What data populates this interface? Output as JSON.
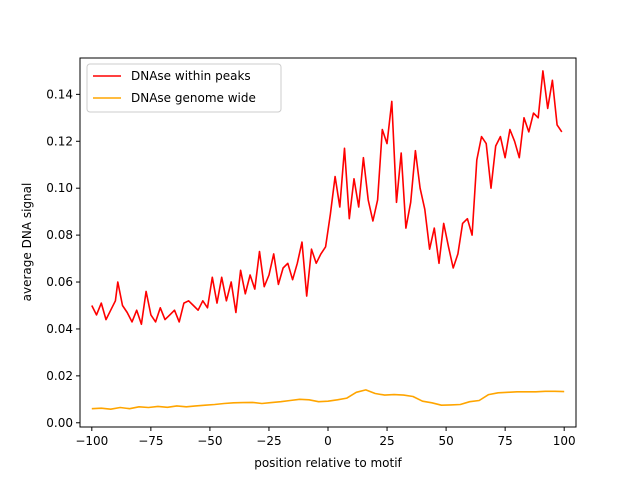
{
  "chart_data": {
    "type": "line",
    "xlabel": "position relative to motif",
    "ylabel": "average DNA signal",
    "xlim": [
      -105,
      105
    ],
    "ylim": [
      -0.0018,
      0.1555
    ],
    "xticks": [
      -100,
      -75,
      -50,
      -25,
      0,
      25,
      50,
      75,
      100
    ],
    "yticks": [
      0.0,
      0.02,
      0.04,
      0.06,
      0.08,
      0.1,
      0.12,
      0.14
    ],
    "ytick_labels": [
      "0.00",
      "0.02",
      "0.04",
      "0.06",
      "0.08",
      "0.10",
      "0.12",
      "0.14"
    ],
    "legend_position": "upper-left",
    "series": [
      {
        "name": "DNAse within peaks",
        "color": "#ff0000",
        "x": [
          -100,
          -98,
          -96,
          -94,
          -92,
          -90,
          -89,
          -87,
          -85,
          -83,
          -81,
          -79,
          -77,
          -75,
          -73,
          -71,
          -69,
          -67,
          -65,
          -63,
          -61,
          -59,
          -57,
          -55,
          -53,
          -51,
          -49,
          -47,
          -45,
          -43,
          -41,
          -39,
          -37,
          -35,
          -33,
          -31,
          -29,
          -27,
          -25,
          -23,
          -21,
          -19,
          -17,
          -15,
          -13,
          -11,
          -9,
          -7,
          -5,
          -3,
          -1,
          1,
          3,
          5,
          7,
          9,
          11,
          13,
          15,
          17,
          19,
          21,
          23,
          25,
          27,
          29,
          31,
          33,
          35,
          37,
          39,
          41,
          43,
          45,
          47,
          49,
          51,
          53,
          55,
          57,
          59,
          61,
          63,
          65,
          67,
          69,
          71,
          73,
          75,
          77,
          79,
          81,
          83,
          85,
          87,
          89,
          91,
          93,
          95,
          97,
          99
        ],
        "y": [
          0.05,
          0.046,
          0.051,
          0.044,
          0.048,
          0.052,
          0.06,
          0.05,
          0.047,
          0.043,
          0.048,
          0.042,
          0.056,
          0.046,
          0.043,
          0.049,
          0.044,
          0.046,
          0.048,
          0.043,
          0.051,
          0.052,
          0.05,
          0.048,
          0.052,
          0.049,
          0.062,
          0.051,
          0.062,
          0.052,
          0.06,
          0.047,
          0.065,
          0.055,
          0.063,
          0.057,
          0.073,
          0.058,
          0.063,
          0.072,
          0.059,
          0.066,
          0.068,
          0.061,
          0.068,
          0.077,
          0.054,
          0.074,
          0.068,
          0.072,
          0.075,
          0.089,
          0.105,
          0.092,
          0.117,
          0.087,
          0.104,
          0.092,
          0.113,
          0.095,
          0.086,
          0.095,
          0.125,
          0.119,
          0.137,
          0.094,
          0.115,
          0.083,
          0.094,
          0.116,
          0.1,
          0.091,
          0.074,
          0.083,
          0.068,
          0.085,
          0.075,
          0.066,
          0.072,
          0.085,
          0.087,
          0.08,
          0.112,
          0.122,
          0.119,
          0.1,
          0.118,
          0.122,
          0.113,
          0.125,
          0.12,
          0.113,
          0.13,
          0.124,
          0.132,
          0.13,
          0.15,
          0.134,
          0.146,
          0.127,
          0.124
        ]
      },
      {
        "name": "DNAse genome wide",
        "color": "#ffa500",
        "x": [
          -100,
          -96,
          -92,
          -88,
          -84,
          -80,
          -76,
          -72,
          -68,
          -64,
          -60,
          -56,
          -52,
          -48,
          -44,
          -40,
          -36,
          -32,
          -28,
          -24,
          -20,
          -16,
          -12,
          -8,
          -4,
          0,
          4,
          8,
          12,
          16,
          20,
          24,
          28,
          32,
          36,
          40,
          44,
          48,
          52,
          56,
          60,
          64,
          68,
          72,
          76,
          80,
          84,
          88,
          92,
          96,
          100
        ],
        "y": [
          0.006,
          0.0062,
          0.0058,
          0.0065,
          0.006,
          0.0068,
          0.0065,
          0.007,
          0.0066,
          0.0072,
          0.0068,
          0.0072,
          0.0075,
          0.0078,
          0.0082,
          0.0085,
          0.0086,
          0.0087,
          0.0082,
          0.0086,
          0.009,
          0.0095,
          0.01,
          0.0098,
          0.009,
          0.0092,
          0.0098,
          0.0105,
          0.013,
          0.014,
          0.0125,
          0.0118,
          0.012,
          0.0118,
          0.0112,
          0.0092,
          0.0085,
          0.0075,
          0.0076,
          0.0078,
          0.009,
          0.0095,
          0.012,
          0.0128,
          0.013,
          0.0132,
          0.0132,
          0.0132,
          0.0134,
          0.0134,
          0.0133
        ]
      }
    ]
  }
}
